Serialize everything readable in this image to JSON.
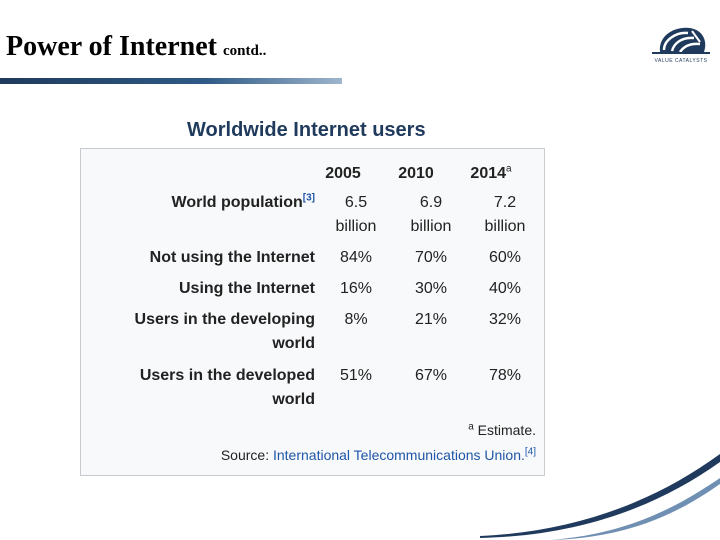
{
  "slide": {
    "title": "Power of Internet",
    "title_suffix": "contd.."
  },
  "logo": {
    "text": "VALUE CATALYSTS"
  },
  "table": {
    "heading": "Worldwide Internet users",
    "columns": [
      "2005",
      "2010",
      "2014"
    ],
    "estimate_marker": "a",
    "rows": [
      {
        "label": "World population",
        "cite": "[3]",
        "values": [
          "6.5",
          "6.9",
          "7.2"
        ],
        "unit": "billion"
      },
      {
        "label": "Not using the Internet",
        "values": [
          "84%",
          "70%",
          "60%"
        ]
      },
      {
        "label": "Using the Internet",
        "values": [
          "16%",
          "30%",
          "40%"
        ]
      },
      {
        "label_line1": "Users in the developing",
        "label_line2": "world",
        "values": [
          "8%",
          "21%",
          "32%"
        ]
      },
      {
        "label_line1": "Users in the developed",
        "label_line2": "world",
        "values": [
          "51%",
          "67%",
          "78%"
        ]
      }
    ],
    "footnote_marker": "a",
    "footnote_text": " Estimate.",
    "source_prefix": "Source: ",
    "source_link": "International Telecommunications Union.",
    "source_cite": "[4]"
  },
  "colors": {
    "heading": "#1f3a5c",
    "link": "#1f56a8",
    "accent": "#2f5a86"
  }
}
